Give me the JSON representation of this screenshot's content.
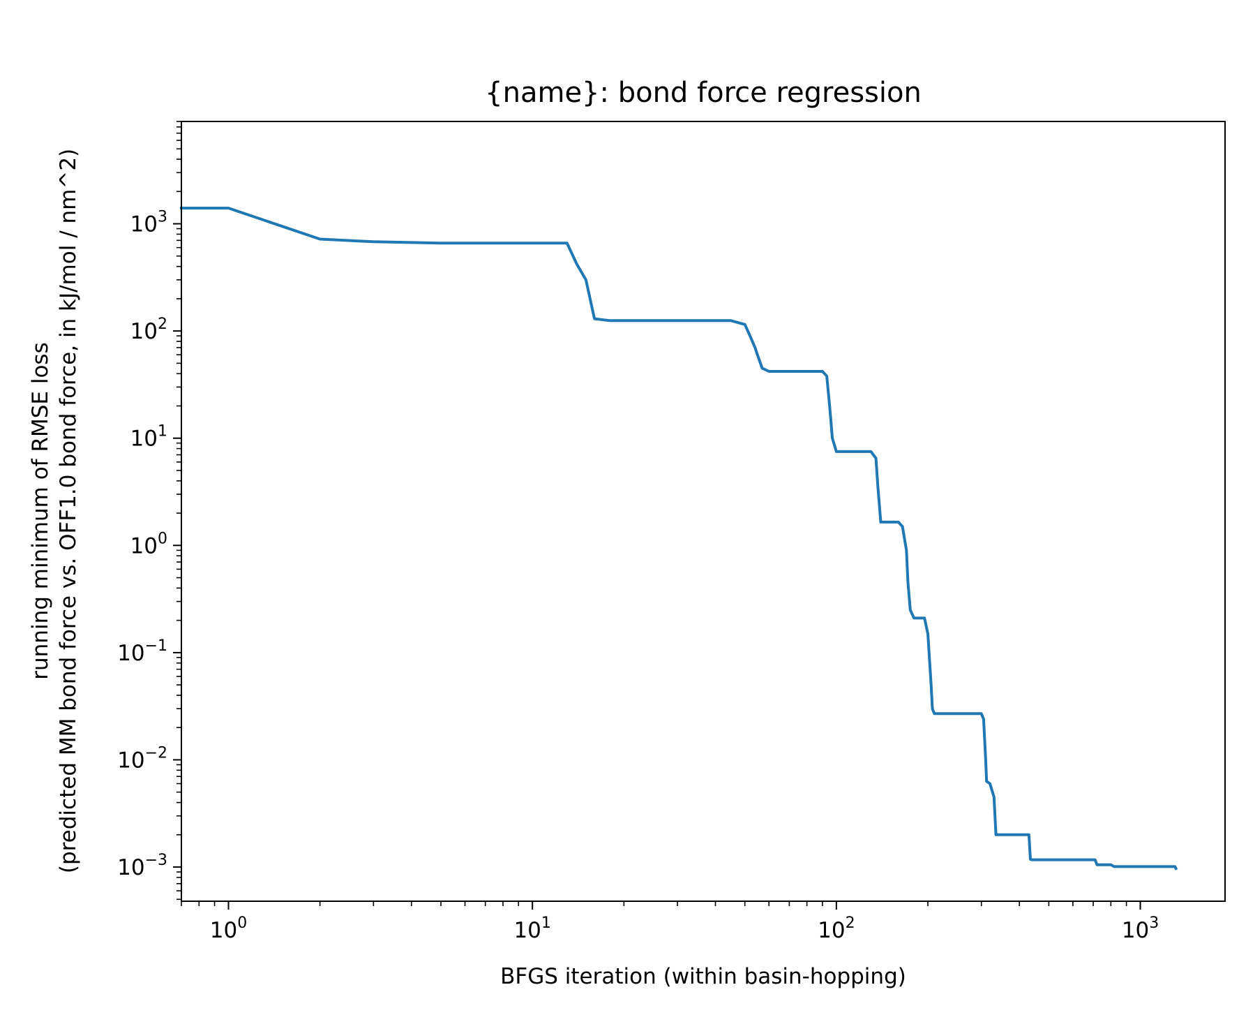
{
  "chart_data": {
    "type": "line",
    "title": "{name}: bond force regression",
    "xlabel": "BFGS iteration (within basin-hopping)",
    "ylabel_line1": "running minimum of RMSE loss",
    "ylabel_line2": "(predicted MM bond force vs. OFF1.0 bond force, in kJ/mol / nm^2)",
    "x_scale": "log",
    "y_scale": "log",
    "xlim": [
      0.7,
      1900
    ],
    "ylim": [
      0.00048,
      9000
    ],
    "grid": false,
    "x_ticks": [
      {
        "base": "10",
        "exp": "0",
        "value": 1
      },
      {
        "base": "10",
        "exp": "1",
        "value": 10
      },
      {
        "base": "10",
        "exp": "2",
        "value": 100
      },
      {
        "base": "10",
        "exp": "3",
        "value": 1000
      }
    ],
    "y_ticks": [
      {
        "base": "10",
        "exp": "−3",
        "value": 0.001
      },
      {
        "base": "10",
        "exp": "−2",
        "value": 0.01
      },
      {
        "base": "10",
        "exp": "−1",
        "value": 0.1
      },
      {
        "base": "10",
        "exp": "0",
        "value": 1
      },
      {
        "base": "10",
        "exp": "1",
        "value": 10
      },
      {
        "base": "10",
        "exp": "2",
        "value": 100
      },
      {
        "base": "10",
        "exp": "3",
        "value": 1000
      }
    ],
    "series": [
      {
        "color": "#1f77b4",
        "x": [
          0.7,
          1,
          2,
          3,
          5,
          13,
          14,
          15,
          16,
          18,
          25,
          45,
          50,
          52,
          54,
          55,
          57,
          60,
          90,
          93,
          95,
          97,
          100,
          130,
          135,
          137,
          140,
          160,
          165,
          170,
          172,
          175,
          180,
          195,
          200,
          205,
          207,
          210,
          300,
          305,
          310,
          312,
          320,
          330,
          335,
          430,
          435,
          440,
          710,
          720,
          800,
          820,
          1300,
          1310
        ],
        "y": [
          1400,
          1400,
          720,
          680,
          660,
          660,
          420,
          300,
          130,
          125,
          125,
          125,
          115,
          90,
          70,
          60,
          45,
          42,
          42,
          38,
          20,
          10,
          7.5,
          7.5,
          6.5,
          3.5,
          1.65,
          1.65,
          1.5,
          0.9,
          0.45,
          0.25,
          0.21,
          0.21,
          0.15,
          0.05,
          0.03,
          0.027,
          0.027,
          0.024,
          0.01,
          0.0063,
          0.006,
          0.0045,
          0.002,
          0.002,
          0.00118,
          0.00117,
          0.00117,
          0.00105,
          0.00105,
          0.00101,
          0.00101,
          0.00097
        ]
      }
    ]
  }
}
